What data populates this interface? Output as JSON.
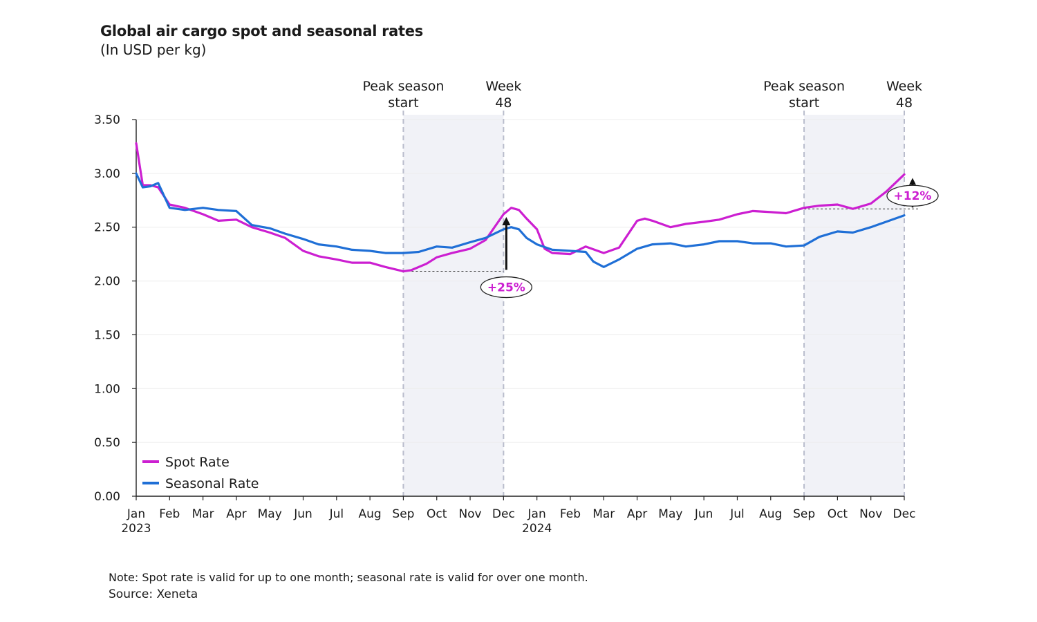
{
  "header": {
    "title": "Global air cargo spot and seasonal rates",
    "subtitle": "(In USD per kg)"
  },
  "footer": {
    "note": "Note: Spot rate is valid for up to one month; seasonal rate is valid for over one month.",
    "source": "Source: Xeneta"
  },
  "colors": {
    "spot": "#cc1fd1",
    "seasonal": "#1f6fd6",
    "shade": "#f1f2f7",
    "marker": "#b9bccc",
    "axis": "#222222"
  },
  "chart_data": {
    "type": "line",
    "title": "Global air cargo spot and seasonal rates",
    "subtitle": "(In USD per kg)",
    "xlabel": "",
    "ylabel": "",
    "ylim": [
      0,
      3.5
    ],
    "yticks": [
      "0.00",
      "0.50",
      "1.00",
      "1.50",
      "2.00",
      "2.50",
      "3.00",
      "3.50"
    ],
    "x_range": [
      "2023-01",
      "2024-12"
    ],
    "month_labels": [
      "Jan",
      "Feb",
      "Mar",
      "Apr",
      "May",
      "Jun",
      "Jul",
      "Aug",
      "Sep",
      "Oct",
      "Nov",
      "Dec",
      "Jan",
      "Feb",
      "Mar",
      "Apr",
      "May",
      "Jun",
      "Jul",
      "Aug",
      "Sep",
      "Oct",
      "Nov",
      "Dec"
    ],
    "year_labels": [
      {
        "text": "2023",
        "month": "2023-01"
      },
      {
        "text": "2024",
        "month": "2024-01"
      }
    ],
    "legend": {
      "position": "bottom-left",
      "entries": [
        "Spot Rate",
        "Seasonal Rate"
      ]
    },
    "grid": true,
    "shaded_regions": [
      {
        "start": "2023-09",
        "end": "2023-12"
      },
      {
        "start": "2024-09",
        "end": "2024-12"
      }
    ],
    "markers": [
      {
        "x": "2023-09",
        "label_lines": [
          "Peak season",
          "start"
        ]
      },
      {
        "x": "2023-12",
        "label_lines": [
          "Week",
          "48"
        ]
      },
      {
        "x": "2024-09",
        "label_lines": [
          "Peak season",
          "start"
        ]
      },
      {
        "x": "2024-12",
        "label_lines": [
          "Week",
          "48"
        ]
      }
    ],
    "annotations": [
      {
        "text": "+25%",
        "from": {
          "x": "2023-09",
          "y": 2.09
        },
        "to": {
          "x": "2023-12",
          "y": 2.62
        }
      },
      {
        "text": "+12%",
        "from": {
          "x": "2024-09",
          "y": 2.67
        },
        "to": {
          "x": "2024-12",
          "y": 2.99
        }
      }
    ],
    "series": [
      {
        "name": "Spot Rate",
        "x": [
          "2023-01-01",
          "2023-01-07",
          "2023-01-14",
          "2023-01-21",
          "2023-02-01",
          "2023-02-15",
          "2023-03-01",
          "2023-03-15",
          "2023-04-01",
          "2023-04-15",
          "2023-05-01",
          "2023-05-15",
          "2023-06-01",
          "2023-06-15",
          "2023-07-01",
          "2023-07-15",
          "2023-08-01",
          "2023-08-15",
          "2023-09-01",
          "2023-09-08",
          "2023-09-22",
          "2023-10-01",
          "2023-10-15",
          "2023-11-01",
          "2023-11-15",
          "2023-12-01",
          "2023-12-08",
          "2023-12-15",
          "2023-12-22",
          "2024-01-01",
          "2024-01-08",
          "2024-01-15",
          "2024-02-01",
          "2024-02-15",
          "2024-03-01",
          "2024-03-15",
          "2024-04-01",
          "2024-04-08",
          "2024-04-15",
          "2024-05-01",
          "2024-05-15",
          "2024-06-01",
          "2024-06-15",
          "2024-07-01",
          "2024-07-15",
          "2024-08-01",
          "2024-08-15",
          "2024-09-01",
          "2024-09-15",
          "2024-10-01",
          "2024-10-15",
          "2024-11-01",
          "2024-11-15",
          "2024-12-01"
        ],
        "values": [
          3.28,
          2.89,
          2.89,
          2.87,
          2.71,
          2.68,
          2.62,
          2.56,
          2.57,
          2.5,
          2.45,
          2.4,
          2.28,
          2.23,
          2.2,
          2.17,
          2.17,
          2.13,
          2.09,
          2.1,
          2.16,
          2.22,
          2.26,
          2.3,
          2.38,
          2.62,
          2.68,
          2.66,
          2.58,
          2.48,
          2.3,
          2.26,
          2.25,
          2.32,
          2.26,
          2.31,
          2.56,
          2.58,
          2.56,
          2.5,
          2.53,
          2.55,
          2.57,
          2.62,
          2.65,
          2.64,
          2.63,
          2.68,
          2.7,
          2.71,
          2.67,
          2.72,
          2.83,
          2.99
        ]
      },
      {
        "name": "Seasonal Rate",
        "x": [
          "2023-01-01",
          "2023-01-07",
          "2023-01-14",
          "2023-01-21",
          "2023-02-01",
          "2023-02-15",
          "2023-03-01",
          "2023-03-15",
          "2023-04-01",
          "2023-04-15",
          "2023-05-01",
          "2023-05-15",
          "2023-06-01",
          "2023-06-15",
          "2023-07-01",
          "2023-07-15",
          "2023-08-01",
          "2023-08-15",
          "2023-09-01",
          "2023-09-15",
          "2023-10-01",
          "2023-10-15",
          "2023-11-01",
          "2023-11-15",
          "2023-12-01",
          "2023-12-08",
          "2023-12-15",
          "2023-12-22",
          "2024-01-01",
          "2024-01-15",
          "2024-02-01",
          "2024-02-15",
          "2024-02-22",
          "2024-03-01",
          "2024-03-15",
          "2024-04-01",
          "2024-04-15",
          "2024-05-01",
          "2024-05-15",
          "2024-06-01",
          "2024-06-15",
          "2024-07-01",
          "2024-07-15",
          "2024-08-01",
          "2024-08-15",
          "2024-09-01",
          "2024-09-15",
          "2024-10-01",
          "2024-10-15",
          "2024-11-01",
          "2024-11-15",
          "2024-12-01"
        ],
        "values": [
          3.0,
          2.87,
          2.88,
          2.91,
          2.68,
          2.66,
          2.68,
          2.66,
          2.65,
          2.52,
          2.49,
          2.44,
          2.39,
          2.34,
          2.32,
          2.29,
          2.28,
          2.26,
          2.26,
          2.27,
          2.32,
          2.31,
          2.36,
          2.4,
          2.48,
          2.5,
          2.48,
          2.4,
          2.34,
          2.29,
          2.28,
          2.27,
          2.18,
          2.13,
          2.2,
          2.3,
          2.34,
          2.35,
          2.32,
          2.34,
          2.37,
          2.37,
          2.35,
          2.35,
          2.32,
          2.33,
          2.41,
          2.46,
          2.45,
          2.5,
          2.55,
          2.61
        ]
      }
    ]
  }
}
